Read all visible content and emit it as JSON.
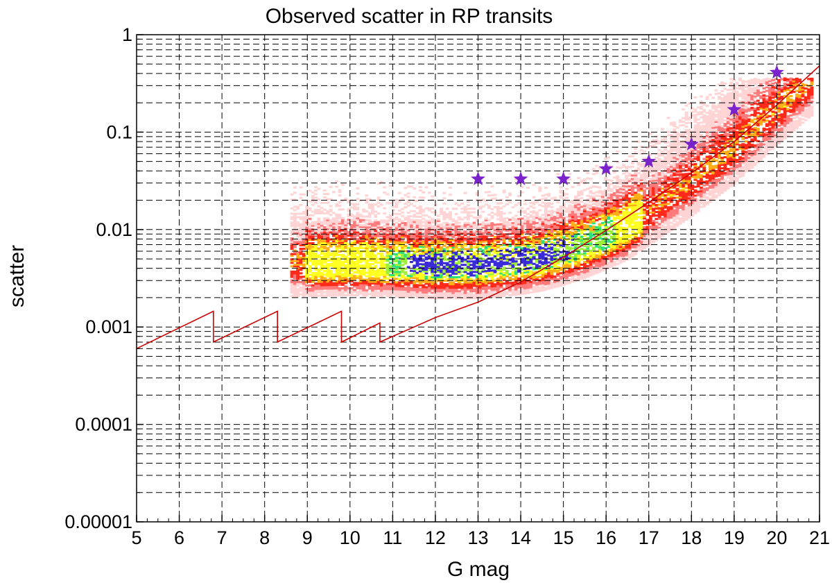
{
  "chart_data": {
    "type": "scatter",
    "title": "Observed scatter in RP transits",
    "xlabel": "G mag",
    "ylabel": "scatter",
    "xlim": [
      5,
      21
    ],
    "ylim": [
      1e-05,
      1
    ],
    "yscale": "log",
    "grid": true,
    "x_ticks": [
      5,
      6,
      7,
      8,
      9,
      10,
      11,
      12,
      13,
      14,
      15,
      16,
      17,
      18,
      19,
      20,
      21
    ],
    "x_tick_labels": [
      "5",
      "6",
      "7",
      "8",
      "9",
      "10",
      "11",
      "12",
      "13",
      "14",
      "15",
      "16",
      "17",
      "18",
      "19",
      "20",
      "21"
    ],
    "y_ticks": [
      1e-05,
      0.0001,
      0.001,
      0.01,
      0.1,
      1
    ],
    "y_tick_labels": [
      "0.00001",
      "0.0001",
      "0.001",
      "0.01",
      "0.1",
      "1"
    ],
    "colors": {
      "model_line": "#cc0000",
      "stars": "#7a22cc",
      "density_low": "#ffd6d6",
      "density_mid": "#ff2a2a",
      "density_high": "#ffff00",
      "density_peak": "#2222ee"
    },
    "series": [
      {
        "name": "model",
        "kind": "line",
        "x": [
          5.0,
          6.8,
          6.8,
          8.3,
          8.3,
          9.8,
          9.8,
          10.7,
          10.7,
          11.5,
          12.0,
          13.0,
          14.0,
          15.0,
          16.0,
          17.0,
          18.0,
          19.0,
          20.0,
          21.0
        ],
        "y": [
          0.0006,
          0.00145,
          0.0007,
          0.00145,
          0.0007,
          0.00145,
          0.0007,
          0.0011,
          0.0007,
          0.001,
          0.00125,
          0.0018,
          0.0029,
          0.0052,
          0.0098,
          0.019,
          0.038,
          0.08,
          0.19,
          0.48
        ]
      },
      {
        "name": "stars",
        "kind": "scatter",
        "marker": "star",
        "x": [
          13,
          14,
          15,
          16,
          17,
          18,
          19,
          20
        ],
        "y": [
          0.033,
          0.033,
          0.033,
          0.042,
          0.05,
          0.075,
          0.17,
          0.41
        ]
      }
    ],
    "density": {
      "kind": "heatmap",
      "x_range": [
        8.6,
        20.8
      ],
      "y_range": [
        0.0012,
        0.35
      ],
      "ridge": {
        "x": [
          8.8,
          10.0,
          11.0,
          12.0,
          13.0,
          14.0,
          14.5,
          15.0,
          15.5,
          16.0,
          16.5,
          17.0,
          18.0,
          19.0,
          20.0,
          20.8
        ],
        "y": [
          0.0042,
          0.0043,
          0.0042,
          0.004,
          0.004,
          0.0044,
          0.0048,
          0.0055,
          0.0065,
          0.008,
          0.01,
          0.014,
          0.028,
          0.06,
          0.15,
          0.3
        ]
      }
    }
  }
}
